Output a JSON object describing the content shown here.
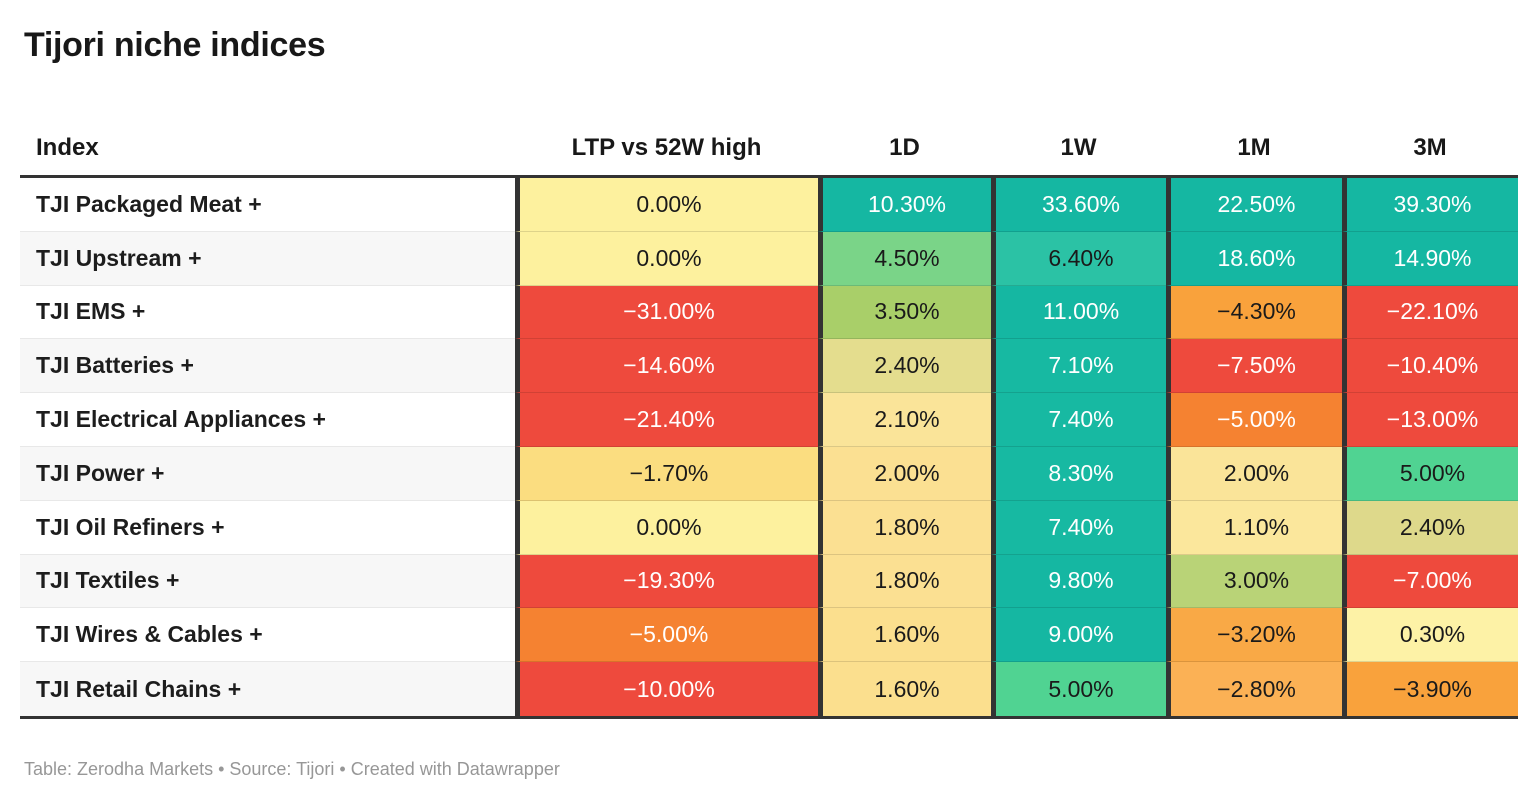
{
  "title": "Tijori niche indices",
  "footer": "Table: Zerodha Markets • Source: Tijori • Created with Datawrapper",
  "palette": {
    "strong_positive_teal": "#15b7a2",
    "positive_green": "#7ad488",
    "neutral_yellow": "#fdf19e",
    "mild_negative_amber": "#f9a23c",
    "negative_orange": "#f58231",
    "strong_negative_red": "#ee4a3d",
    "border_dark": "#333333"
  },
  "chart_data": {
    "type": "heatmap",
    "columns": [
      "Index",
      "LTP vs 52W high",
      "1D",
      "1W",
      "1M",
      "3M"
    ],
    "rows": [
      {
        "index": "TJI Packaged Meat +",
        "cells": [
          {
            "v": "0.00%",
            "bg": "#fdf19e",
            "fg": "#1a1a1a"
          },
          {
            "v": "10.30%",
            "bg": "#15b7a2",
            "fg": "#ffffff"
          },
          {
            "v": "33.60%",
            "bg": "#15b7a2",
            "fg": "#ffffff"
          },
          {
            "v": "22.50%",
            "bg": "#15b7a2",
            "fg": "#ffffff"
          },
          {
            "v": "39.30%",
            "bg": "#15b7a2",
            "fg": "#ffffff"
          }
        ]
      },
      {
        "index": "TJI Upstream +",
        "cells": [
          {
            "v": "0.00%",
            "bg": "#fdf19e",
            "fg": "#1a1a1a"
          },
          {
            "v": "4.50%",
            "bg": "#7ad488",
            "fg": "#1a1a1a"
          },
          {
            "v": "6.40%",
            "bg": "#2bc2a5",
            "fg": "#1a1a1a"
          },
          {
            "v": "18.60%",
            "bg": "#15b7a2",
            "fg": "#ffffff"
          },
          {
            "v": "14.90%",
            "bg": "#15b7a2",
            "fg": "#ffffff"
          }
        ]
      },
      {
        "index": "TJI EMS +",
        "cells": [
          {
            "v": "−31.00%",
            "bg": "#ee4a3d",
            "fg": "#ffffff"
          },
          {
            "v": "3.50%",
            "bg": "#a9cf69",
            "fg": "#1a1a1a"
          },
          {
            "v": "11.00%",
            "bg": "#15b7a2",
            "fg": "#ffffff"
          },
          {
            "v": "−4.30%",
            "bg": "#f9a23c",
            "fg": "#1a1a1a"
          },
          {
            "v": "−22.10%",
            "bg": "#ee4a3d",
            "fg": "#ffffff"
          }
        ]
      },
      {
        "index": "TJI Batteries +",
        "cells": [
          {
            "v": "−14.60%",
            "bg": "#ee4a3d",
            "fg": "#ffffff"
          },
          {
            "v": "2.40%",
            "bg": "#e4dd8e",
            "fg": "#1a1a1a"
          },
          {
            "v": "7.10%",
            "bg": "#17b9a2",
            "fg": "#ffffff"
          },
          {
            "v": "−7.50%",
            "bg": "#ee4a3d",
            "fg": "#ffffff"
          },
          {
            "v": "−10.40%",
            "bg": "#ee4a3d",
            "fg": "#ffffff"
          }
        ]
      },
      {
        "index": "TJI Electrical Appliances +",
        "cells": [
          {
            "v": "−21.40%",
            "bg": "#ee4a3d",
            "fg": "#ffffff"
          },
          {
            "v": "2.10%",
            "bg": "#fae499",
            "fg": "#1a1a1a"
          },
          {
            "v": "7.40%",
            "bg": "#17b9a2",
            "fg": "#ffffff"
          },
          {
            "v": "−5.00%",
            "bg": "#f58231",
            "fg": "#ffffff"
          },
          {
            "v": "−13.00%",
            "bg": "#ee4a3d",
            "fg": "#ffffff"
          }
        ]
      },
      {
        "index": "TJI Power +",
        "cells": [
          {
            "v": "−1.70%",
            "bg": "#fbdd80",
            "fg": "#1a1a1a"
          },
          {
            "v": "2.00%",
            "bg": "#fbe092",
            "fg": "#1a1a1a"
          },
          {
            "v": "8.30%",
            "bg": "#17b9a2",
            "fg": "#ffffff"
          },
          {
            "v": "2.00%",
            "bg": "#fae499",
            "fg": "#1a1a1a"
          },
          {
            "v": "5.00%",
            "bg": "#50d392",
            "fg": "#1a1a1a"
          }
        ]
      },
      {
        "index": "TJI Oil Refiners +",
        "cells": [
          {
            "v": "0.00%",
            "bg": "#fdf19e",
            "fg": "#1a1a1a"
          },
          {
            "v": "1.80%",
            "bg": "#fbe092",
            "fg": "#1a1a1a"
          },
          {
            "v": "7.40%",
            "bg": "#17b9a2",
            "fg": "#ffffff"
          },
          {
            "v": "1.10%",
            "bg": "#fbe79c",
            "fg": "#1a1a1a"
          },
          {
            "v": "2.40%",
            "bg": "#ded98b",
            "fg": "#1a1a1a"
          }
        ]
      },
      {
        "index": "TJI Textiles +",
        "cells": [
          {
            "v": "−19.30%",
            "bg": "#ee4a3d",
            "fg": "#ffffff"
          },
          {
            "v": "1.80%",
            "bg": "#fbe092",
            "fg": "#1a1a1a"
          },
          {
            "v": "9.80%",
            "bg": "#15b7a2",
            "fg": "#ffffff"
          },
          {
            "v": "3.00%",
            "bg": "#b9d377",
            "fg": "#1a1a1a"
          },
          {
            "v": "−7.00%",
            "bg": "#ee4a3d",
            "fg": "#ffffff"
          }
        ]
      },
      {
        "index": "TJI Wires & Cables +",
        "cells": [
          {
            "v": "−5.00%",
            "bg": "#f58231",
            "fg": "#ffffff"
          },
          {
            "v": "1.60%",
            "bg": "#fbdf8e",
            "fg": "#1a1a1a"
          },
          {
            "v": "9.00%",
            "bg": "#15b7a2",
            "fg": "#ffffff"
          },
          {
            "v": "−3.20%",
            "bg": "#f9a946",
            "fg": "#1a1a1a"
          },
          {
            "v": "0.30%",
            "bg": "#fdf2a6",
            "fg": "#1a1a1a"
          }
        ]
      },
      {
        "index": "TJI Retail Chains +",
        "cells": [
          {
            "v": "−10.00%",
            "bg": "#ee4a3d",
            "fg": "#ffffff"
          },
          {
            "v": "1.60%",
            "bg": "#fbdf8e",
            "fg": "#1a1a1a"
          },
          {
            "v": "5.00%",
            "bg": "#50d392",
            "fg": "#1a1a1a"
          },
          {
            "v": "−2.80%",
            "bg": "#fbb155",
            "fg": "#1a1a1a"
          },
          {
            "v": "−3.90%",
            "bg": "#f9a23c",
            "fg": "#1a1a1a"
          }
        ]
      }
    ]
  }
}
